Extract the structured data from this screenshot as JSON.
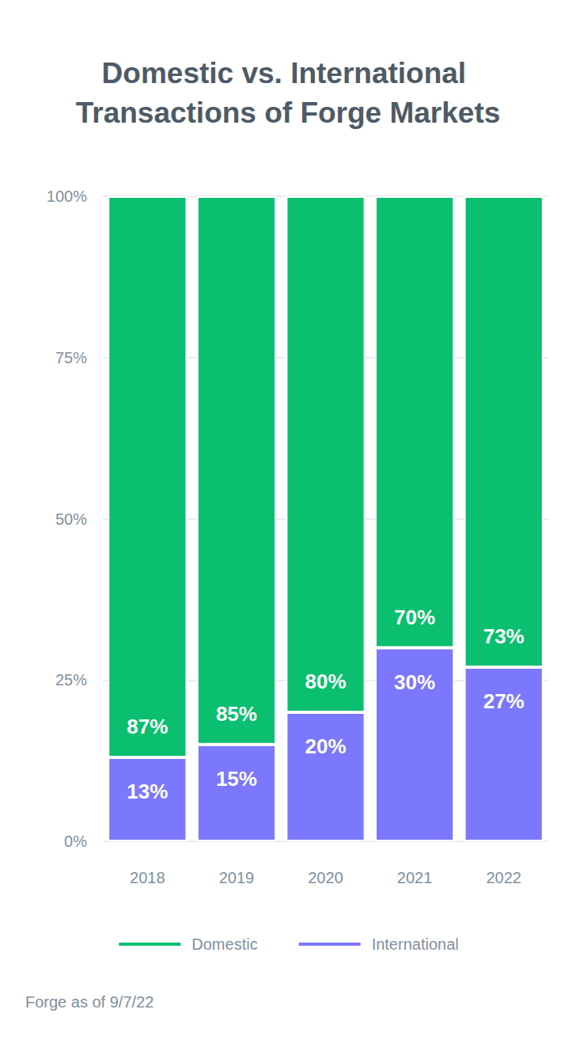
{
  "chart_data": {
    "type": "bar",
    "title": "Domestic vs. International Transactions of Forge Markets",
    "note": "Forge as of 9/7/22",
    "categories": [
      "2018",
      "2019",
      "2020",
      "2021",
      "2022"
    ],
    "series": [
      {
        "name": "International",
        "color": "#7b78fd",
        "values": [
          13,
          15,
          20,
          30,
          27
        ],
        "value_labels": [
          "13%",
          "15%",
          "20%",
          "30%",
          "27%"
        ]
      },
      {
        "name": "Domestic",
        "color": "#0abf6f",
        "values": [
          87,
          85,
          80,
          70,
          73
        ],
        "value_labels": [
          "87%",
          "85%",
          "80%",
          "70%",
          "73%"
        ]
      }
    ],
    "ylim": [
      0,
      100
    ],
    "yticks": [
      {
        "value": 0,
        "label": "0%"
      },
      {
        "value": 25,
        "label": "25%"
      },
      {
        "value": 50,
        "label": "50%"
      },
      {
        "value": 75,
        "label": "75%"
      },
      {
        "value": 100,
        "label": "100%"
      }
    ],
    "stacked": true,
    "data_labels": true,
    "grid": true,
    "legend": "bottom"
  }
}
